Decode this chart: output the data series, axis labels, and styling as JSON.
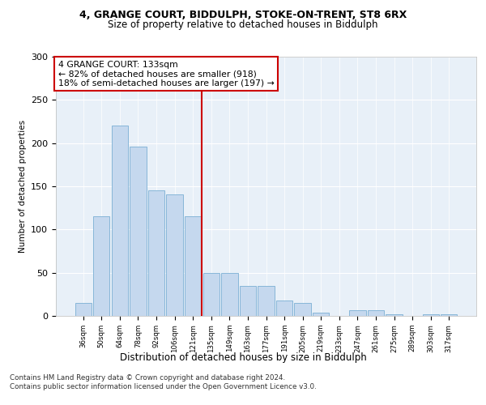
{
  "title_line1": "4, GRANGE COURT, BIDDULPH, STOKE-ON-TRENT, ST8 6RX",
  "title_line2": "Size of property relative to detached houses in Biddulph",
  "xlabel": "Distribution of detached houses by size in Biddulph",
  "ylabel": "Number of detached properties",
  "categories": [
    "36sqm",
    "50sqm",
    "64sqm",
    "78sqm",
    "92sqm",
    "106sqm",
    "121sqm",
    "135sqm",
    "149sqm",
    "163sqm",
    "177sqm",
    "191sqm",
    "205sqm",
    "219sqm",
    "233sqm",
    "247sqm",
    "261sqm",
    "275sqm",
    "289sqm",
    "303sqm",
    "317sqm"
  ],
  "values": [
    15,
    115,
    220,
    196,
    145,
    141,
    115,
    50,
    50,
    35,
    35,
    18,
    15,
    4,
    0,
    7,
    7,
    2,
    0,
    2,
    2
  ],
  "bar_color": "#c5d8ee",
  "bar_edgecolor": "#7aafd4",
  "vline_color": "#cc0000",
  "annotation_text": "4 GRANGE COURT: 133sqm\n← 82% of detached houses are smaller (918)\n18% of semi-detached houses are larger (197) →",
  "annotation_box_color": "#ffffff",
  "annotation_box_edgecolor": "#cc0000",
  "ylim": [
    0,
    300
  ],
  "yticks": [
    0,
    50,
    100,
    150,
    200,
    250,
    300
  ],
  "footer_line1": "Contains HM Land Registry data © Crown copyright and database right 2024.",
  "footer_line2": "Contains public sector information licensed under the Open Government Licence v3.0.",
  "plot_background": "#e8f0f8"
}
